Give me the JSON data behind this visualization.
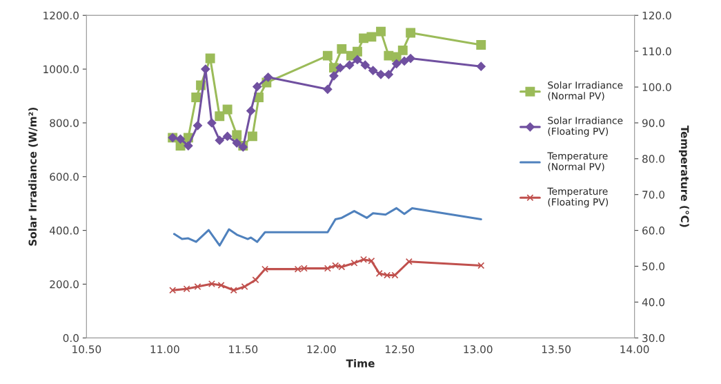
{
  "chart_data": {
    "type": "line",
    "xlabel": "Time",
    "ylabel": "Solar Irradiance (W/m²)",
    "y2label": "Temperature (°C)",
    "xlim": [
      10.5,
      14.0
    ],
    "xticks": [
      {
        "value": 10.5,
        "label": "10.50"
      },
      {
        "value": 11.0,
        "label": "11.00"
      },
      {
        "value": 11.5,
        "label": "11.50"
      },
      {
        "value": 12.0,
        "label": "12.00"
      },
      {
        "value": 12.5,
        "label": "12.50"
      },
      {
        "value": 13.0,
        "label": "13.00"
      },
      {
        "value": 13.5,
        "label": "13.50"
      },
      {
        "value": 14.0,
        "label": "14.00"
      }
    ],
    "ylim": [
      0,
      1200
    ],
    "yticks": [
      {
        "value": 0,
        "label": "0.0"
      },
      {
        "value": 200,
        "label": "200.0"
      },
      {
        "value": 400,
        "label": "400.0"
      },
      {
        "value": 600,
        "label": "600.0"
      },
      {
        "value": 800,
        "label": "800.0"
      },
      {
        "value": 1000,
        "label": "1000.0"
      },
      {
        "value": 1200,
        "label": "1200.0"
      }
    ],
    "y2lim": [
      30,
      120
    ],
    "y2ticks": [
      {
        "value": 30,
        "label": "30.0"
      },
      {
        "value": 40,
        "label": "40.0"
      },
      {
        "value": 50,
        "label": "50.0"
      },
      {
        "value": 60,
        "label": "60.0"
      },
      {
        "value": 70,
        "label": "70.0"
      },
      {
        "value": 80,
        "label": "80.0"
      },
      {
        "value": 90,
        "label": "90.0"
      },
      {
        "value": 100,
        "label": "100.0"
      },
      {
        "value": 110,
        "label": "110.0"
      },
      {
        "value": 120,
        "label": "120.0"
      }
    ],
    "grid": false,
    "legend": "right",
    "series": [
      {
        "name": "Solar Irradiance\n(Normal PV)",
        "color": "#9bbb59",
        "marker": "square",
        "x": [
          11.05,
          11.1,
          11.15,
          11.2,
          11.23,
          11.29,
          11.35,
          11.4,
          11.46,
          11.5,
          11.56,
          11.6,
          11.65,
          12.04,
          12.08,
          12.13,
          12.19,
          12.23,
          12.27,
          12.32,
          12.38,
          12.43,
          12.48,
          12.52,
          12.57,
          13.02
        ],
        "values": [
          745,
          715,
          745,
          895,
          940,
          1040,
          825,
          850,
          755,
          715,
          750,
          895,
          950,
          1050,
          1005,
          1075,
          1050,
          1065,
          1115,
          1120,
          1140,
          1050,
          1045,
          1070,
          1135,
          1090
        ]
      },
      {
        "name": "Solar Irradiance\n(Floating PV)",
        "color": "#7050a0",
        "marker": "diamond",
        "x": [
          11.05,
          11.1,
          11.15,
          11.21,
          11.26,
          11.3,
          11.35,
          11.4,
          11.46,
          11.5,
          11.55,
          11.59,
          11.66,
          12.04,
          12.08,
          12.12,
          12.18,
          12.23,
          12.28,
          12.33,
          12.38,
          12.43,
          12.48,
          12.53,
          12.57,
          13.02
        ],
        "values": [
          745,
          740,
          715,
          790,
          1000,
          800,
          735,
          750,
          725,
          710,
          845,
          935,
          970,
          925,
          975,
          1005,
          1015,
          1035,
          1015,
          995,
          980,
          980,
          1020,
          1030,
          1040,
          1010
        ]
      },
      {
        "name": "Temperature\n(Normal PV)",
        "color": "#4f81bd",
        "marker": "none",
        "axis": "y2",
        "x": [
          11.06,
          11.11,
          11.15,
          11.2,
          11.28,
          11.35,
          11.41,
          11.46,
          11.53,
          11.55,
          11.59,
          11.64,
          11.85,
          12.04,
          12.09,
          12.13,
          12.21,
          12.29,
          12.33,
          12.41,
          12.48,
          12.53,
          12.58,
          13.02
        ],
        "values": [
          59.0,
          57.6,
          57.8,
          56.8,
          60.1,
          55.8,
          60.3,
          58.8,
          57.6,
          58.0,
          56.8,
          59.5,
          59.5,
          59.5,
          63.1,
          63.5,
          65.4,
          63.5,
          64.8,
          64.4,
          66.2,
          64.6,
          66.2,
          63.1
        ]
      },
      {
        "name": "Temperature\n(Floating PV)",
        "color": "#c0504d",
        "marker": "cross",
        "axis": "y2",
        "x": [
          11.05,
          11.14,
          11.21,
          11.3,
          11.36,
          11.44,
          11.51,
          11.58,
          11.64,
          11.85,
          11.89,
          12.04,
          12.09,
          12.13,
          12.21,
          12.27,
          12.32,
          12.37,
          12.42,
          12.47,
          12.56,
          13.02
        ],
        "values": [
          43.3,
          43.7,
          44.3,
          45.1,
          44.7,
          43.3,
          44.3,
          46.2,
          49.2,
          49.2,
          49.4,
          49.4,
          50.2,
          49.8,
          50.9,
          51.9,
          51.5,
          48.0,
          47.5,
          47.5,
          51.3,
          50.2
        ]
      }
    ]
  }
}
